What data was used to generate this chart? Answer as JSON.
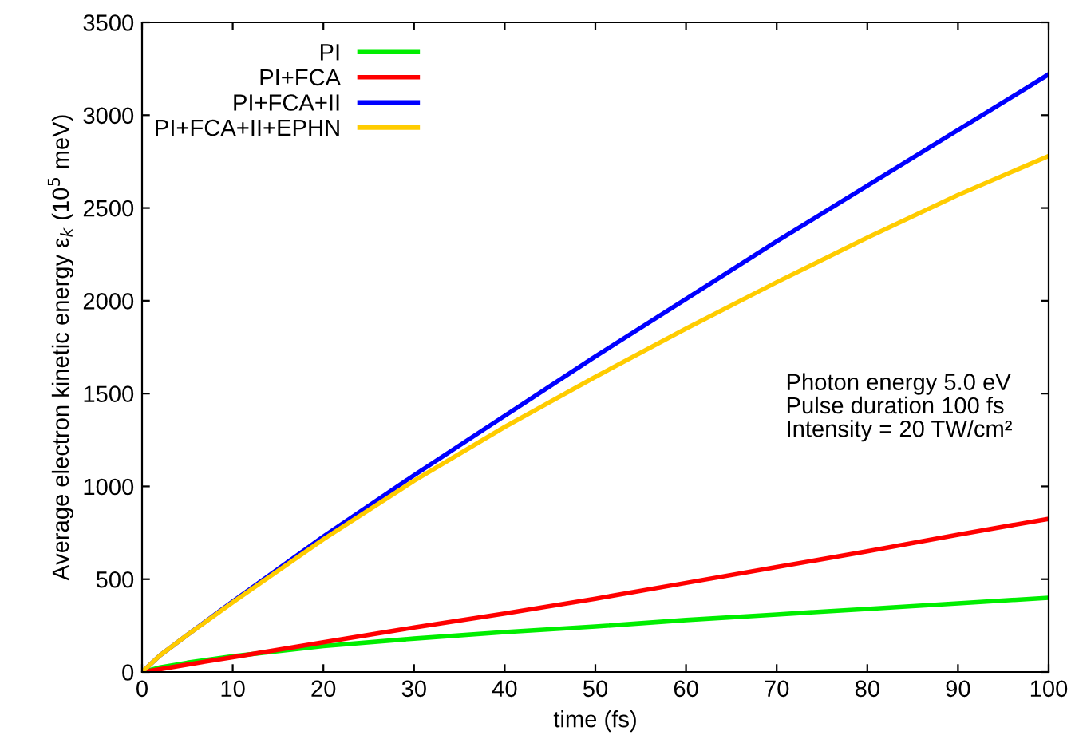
{
  "chart_data": {
    "type": "line",
    "xlabel": "time (fs)",
    "ylabel": "Average electron kinetic energy ε$_{k}$ (10$^{5}$ meV)",
    "x": [
      0,
      2,
      5,
      10,
      20,
      30,
      40,
      50,
      60,
      70,
      80,
      90,
      100
    ],
    "series": [
      {
        "name": "PI",
        "color": "#00ee00",
        "values": [
          0,
          25,
          50,
          85,
          140,
          180,
          215,
          245,
          280,
          310,
          340,
          370,
          400
        ]
      },
      {
        "name": "PI+FCA",
        "color": "#ff0000",
        "values": [
          0,
          15,
          40,
          80,
          160,
          240,
          315,
          395,
          480,
          565,
          650,
          740,
          825
        ]
      },
      {
        "name": "PI+FCA+II",
        "color": "#0000ff",
        "values": [
          0,
          90,
          200,
          380,
          730,
          1060,
          1380,
          1700,
          2010,
          2320,
          2620,
          2920,
          3220
        ]
      },
      {
        "name": "PI+FCA+II+EPHN",
        "color": "#ffcc00",
        "values": [
          0,
          90,
          200,
          375,
          715,
          1030,
          1320,
          1590,
          1850,
          2100,
          2340,
          2570,
          2780
        ]
      }
    ],
    "xlim": [
      0,
      100
    ],
    "ylim": [
      0,
      3500
    ],
    "xticks": [
      0,
      10,
      20,
      30,
      40,
      50,
      60,
      70,
      80,
      90,
      100
    ],
    "yticks": [
      0,
      500,
      1000,
      1500,
      2000,
      2500,
      3000,
      3500
    ],
    "grid": false,
    "legend": "top left",
    "marker": "none",
    "line_style": "solid",
    "annotations": [
      {
        "text": "Photon energy 5.0 eV\nPulse duration 100 fs\nIntensity = 20 TW/cm²"
      }
    ]
  }
}
